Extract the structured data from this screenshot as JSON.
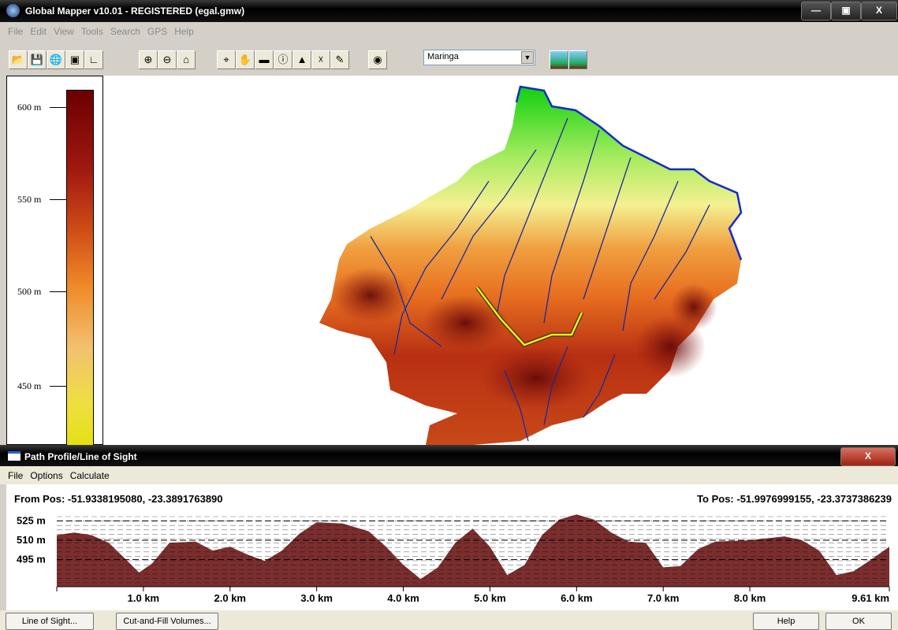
{
  "window": {
    "title": "Global Mapper v10.01 - REGISTERED (egal.gmw)",
    "menu": [
      "File",
      "Edit",
      "View",
      "Tools",
      "Search",
      "GPS",
      "Help"
    ],
    "location": "Maringa"
  },
  "legend": {
    "labels": [
      "600 m",
      "550 m",
      "500 m",
      "450 m"
    ]
  },
  "profile_window": {
    "title": "Path Profile/Line of Sight",
    "menu": [
      "File",
      "Options",
      "Calculate"
    ],
    "from": "From Pos: -51.9338195080, -23.3891763890",
    "to": "To Pos: -51.9976999155, -23.3737386239",
    "buttons": [
      "Line of Sight...",
      "Cut-and-Fill Volumes...",
      "Help",
      "OK"
    ]
  },
  "chart_data": {
    "type": "area",
    "color": "#7b2e2e",
    "x": [
      0,
      0.2,
      0.4,
      0.6,
      0.8,
      0.95,
      1.1,
      1.3,
      1.6,
      1.8,
      2.0,
      2.2,
      2.4,
      2.6,
      2.8,
      3.0,
      3.3,
      3.6,
      3.8,
      4.0,
      4.2,
      4.4,
      4.6,
      4.8,
      5.0,
      5.2,
      5.4,
      5.6,
      5.8,
      6.0,
      6.2,
      6.4,
      6.6,
      6.8,
      7.0,
      7.2,
      7.4,
      7.6,
      8.0,
      8.4,
      8.6,
      8.8,
      9.0,
      9.2,
      9.4,
      9.61
    ],
    "values": [
      514,
      516,
      514,
      508,
      495,
      485,
      492,
      508,
      509,
      502,
      505,
      499,
      494,
      502,
      515,
      524,
      523,
      517,
      505,
      491,
      480,
      489,
      508,
      519,
      505,
      483,
      491,
      514,
      526,
      530,
      526,
      516,
      509,
      508,
      489,
      490,
      503,
      509,
      510,
      513,
      510,
      502,
      483,
      486,
      495,
      505
    ],
    "xlim": [
      0,
      9.61
    ],
    "ylim": [
      474,
      532
    ],
    "xticks": [
      {
        "value": 1,
        "label": "1.0 km"
      },
      {
        "value": 2,
        "label": "2.0 km"
      },
      {
        "value": 3,
        "label": "3.0 km"
      },
      {
        "value": 4,
        "label": "4.0 km"
      },
      {
        "value": 5,
        "label": "5.0 km"
      },
      {
        "value": 6,
        "label": "6.0 km"
      },
      {
        "value": 7,
        "label": "7.0 km"
      },
      {
        "value": 8,
        "label": "8.0 km"
      },
      {
        "value": 9.61,
        "label": "9.61 km"
      }
    ],
    "yticks": [
      {
        "value": 525,
        "label": "525 m"
      },
      {
        "value": 510,
        "label": "510 m"
      },
      {
        "value": 495,
        "label": "495 m"
      }
    ]
  }
}
